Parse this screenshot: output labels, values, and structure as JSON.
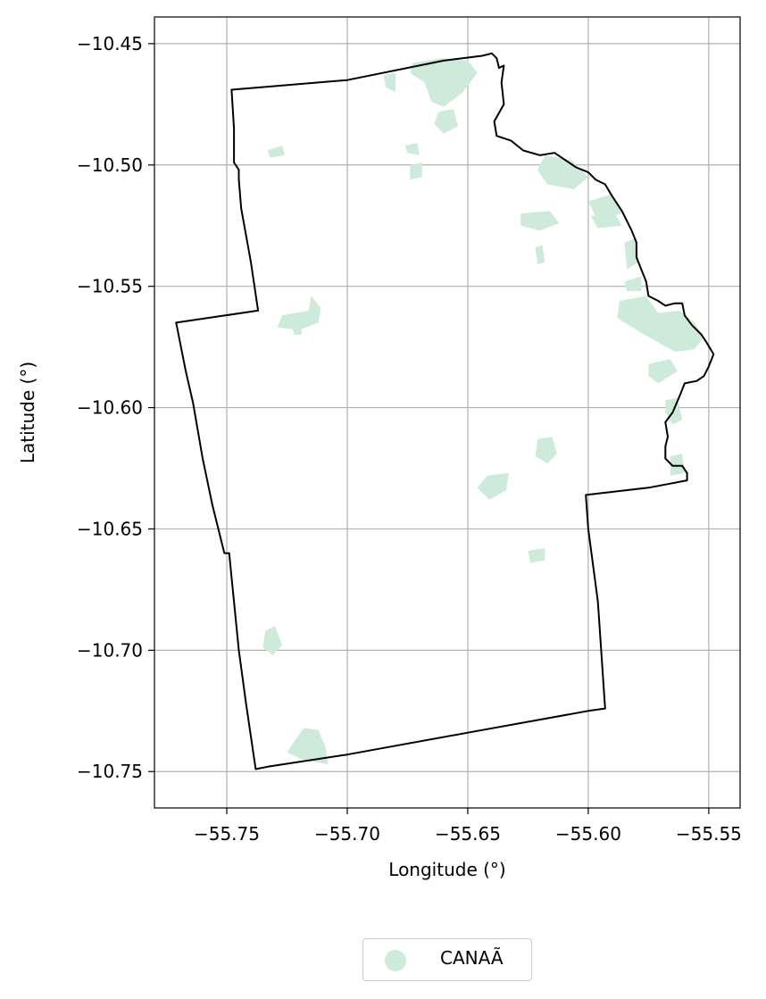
{
  "chart_data": {
    "type": "map",
    "xlabel": "Longitude (°)",
    "ylabel": "Latitude (°)",
    "xlim": [
      -55.78,
      -55.537
    ],
    "ylim": [
      -10.765,
      -10.439
    ],
    "xticks": [
      -55.75,
      -55.7,
      -55.65,
      -55.6,
      -55.55
    ],
    "yticks": [
      -10.45,
      -10.5,
      -10.55,
      -10.6,
      -10.65,
      -10.7,
      -10.75
    ],
    "xtick_labels": [
      "−55.75",
      "−55.70",
      "−55.65",
      "−55.60",
      "−55.55"
    ],
    "ytick_labels": [
      "−10.45",
      "−10.50",
      "−10.55",
      "−10.60",
      "−10.65",
      "−10.70",
      "−10.75"
    ],
    "grid": true,
    "fill_color": "#cdeadb",
    "boundary_color": "#000000",
    "legend": {
      "placement": "bottom-center",
      "label": "CANAÃ"
    },
    "boundary": [
      [
        -55.748,
        -10.469
      ],
      [
        -55.7,
        -10.465
      ],
      [
        -55.66,
        -10.457
      ],
      [
        -55.644,
        -10.455
      ],
      [
        -55.64,
        -10.454
      ],
      [
        -55.638,
        -10.456
      ],
      [
        -55.637,
        -10.46
      ],
      [
        -55.635,
        -10.459
      ],
      [
        -55.636,
        -10.466
      ],
      [
        -55.635,
        -10.475
      ],
      [
        -55.639,
        -10.482
      ],
      [
        -55.638,
        -10.488
      ],
      [
        -55.632,
        -10.49
      ],
      [
        -55.627,
        -10.494
      ],
      [
        -55.62,
        -10.496
      ],
      [
        -55.614,
        -10.495
      ],
      [
        -55.608,
        -10.499
      ],
      [
        -55.605,
        -10.501
      ],
      [
        -55.6,
        -10.503
      ],
      [
        -55.597,
        -10.506
      ],
      [
        -55.593,
        -10.508
      ],
      [
        -55.59,
        -10.513
      ],
      [
        -55.586,
        -10.519
      ],
      [
        -55.584,
        -10.523
      ],
      [
        -55.582,
        -10.527
      ],
      [
        -55.58,
        -10.532
      ],
      [
        -55.58,
        -10.538
      ],
      [
        -55.578,
        -10.543
      ],
      [
        -55.576,
        -10.548
      ],
      [
        -55.575,
        -10.554
      ],
      [
        -55.571,
        -10.556
      ],
      [
        -55.568,
        -10.558
      ],
      [
        -55.564,
        -10.557
      ],
      [
        -55.561,
        -10.557
      ],
      [
        -55.56,
        -10.562
      ],
      [
        -55.557,
        -10.566
      ],
      [
        -55.553,
        -10.57
      ],
      [
        -55.551,
        -10.573
      ],
      [
        -55.548,
        -10.578
      ],
      [
        -55.55,
        -10.583
      ],
      [
        -55.552,
        -10.587
      ],
      [
        -55.555,
        -10.589
      ],
      [
        -55.56,
        -10.59
      ],
      [
        -55.562,
        -10.595
      ],
      [
        -55.565,
        -10.602
      ],
      [
        -55.568,
        -10.606
      ],
      [
        -55.567,
        -10.612
      ],
      [
        -55.568,
        -10.616
      ],
      [
        -55.568,
        -10.621
      ],
      [
        -55.565,
        -10.624
      ],
      [
        -55.561,
        -10.624
      ],
      [
        -55.559,
        -10.627
      ],
      [
        -55.559,
        -10.63
      ],
      [
        -55.575,
        -10.633
      ],
      [
        -55.601,
        -10.636
      ],
      [
        -55.6,
        -10.65
      ],
      [
        -55.596,
        -10.68
      ],
      [
        -55.593,
        -10.724
      ],
      [
        -55.6,
        -10.725
      ],
      [
        -55.65,
        -10.734
      ],
      [
        -55.7,
        -10.743
      ],
      [
        -55.733,
        -10.748
      ],
      [
        -55.738,
        -10.749
      ],
      [
        -55.742,
        -10.722
      ],
      [
        -55.745,
        -10.7
      ],
      [
        -55.749,
        -10.66
      ],
      [
        -55.751,
        -10.66
      ],
      [
        -55.756,
        -10.64
      ],
      [
        -55.76,
        -10.621
      ],
      [
        -55.764,
        -10.598
      ],
      [
        -55.767,
        -10.585
      ],
      [
        -55.771,
        -10.565
      ],
      [
        -55.737,
        -10.56
      ],
      [
        -55.74,
        -10.54
      ],
      [
        -55.744,
        -10.518
      ],
      [
        -55.745,
        -10.506
      ],
      [
        -55.745,
        -10.502
      ],
      [
        -55.747,
        -10.499
      ],
      [
        -55.747,
        -10.485
      ],
      [
        -55.748,
        -10.469
      ]
    ],
    "patches": [
      [
        [
          -55.673,
          -10.458
        ],
        [
          -55.661,
          -10.456
        ],
        [
          -55.65,
          -10.457
        ],
        [
          -55.646,
          -10.462
        ],
        [
          -55.652,
          -10.47
        ],
        [
          -55.66,
          -10.476
        ],
        [
          -55.665,
          -10.474
        ],
        [
          -55.668,
          -10.466
        ],
        [
          -55.674,
          -10.462
        ]
      ],
      [
        [
          -55.685,
          -10.463
        ],
        [
          -55.68,
          -10.462
        ],
        [
          -55.68,
          -10.47
        ],
        [
          -55.684,
          -10.468
        ]
      ],
      [
        [
          -55.662,
          -10.478
        ],
        [
          -55.656,
          -10.477
        ],
        [
          -55.654,
          -10.484
        ],
        [
          -55.66,
          -10.487
        ],
        [
          -55.664,
          -10.483
        ]
      ],
      [
        [
          -55.676,
          -10.492
        ],
        [
          -55.671,
          -10.491
        ],
        [
          -55.67,
          -10.496
        ],
        [
          -55.675,
          -10.495
        ]
      ],
      [
        [
          -55.674,
          -10.5
        ],
        [
          -55.669,
          -10.499
        ],
        [
          -55.669,
          -10.505
        ],
        [
          -55.674,
          -10.506
        ]
      ],
      [
        [
          -55.733,
          -10.494
        ],
        [
          -55.727,
          -10.492
        ],
        [
          -55.726,
          -10.496
        ],
        [
          -55.732,
          -10.497
        ]
      ],
      [
        [
          -55.618,
          -10.496
        ],
        [
          -55.607,
          -10.498
        ],
        [
          -55.6,
          -10.505
        ],
        [
          -55.606,
          -10.51
        ],
        [
          -55.617,
          -10.508
        ],
        [
          -55.621,
          -10.502
        ]
      ],
      [
        [
          -55.628,
          -10.52
        ],
        [
          -55.616,
          -10.519
        ],
        [
          -55.612,
          -10.524
        ],
        [
          -55.62,
          -10.527
        ],
        [
          -55.628,
          -10.525
        ]
      ],
      [
        [
          -55.6,
          -10.515
        ],
        [
          -55.59,
          -10.512
        ],
        [
          -55.586,
          -10.52
        ],
        [
          -55.596,
          -10.523
        ]
      ],
      [
        [
          -55.599,
          -10.521
        ],
        [
          -55.589,
          -10.52
        ],
        [
          -55.586,
          -10.525
        ],
        [
          -55.596,
          -10.526
        ]
      ],
      [
        [
          -55.585,
          -10.532
        ],
        [
          -55.58,
          -10.53
        ],
        [
          -55.579,
          -10.54
        ],
        [
          -55.584,
          -10.543
        ]
      ],
      [
        [
          -55.622,
          -10.534
        ],
        [
          -55.619,
          -10.533
        ],
        [
          -55.618,
          -10.54
        ],
        [
          -55.621,
          -10.541
        ]
      ],
      [
        [
          -55.585,
          -10.548
        ],
        [
          -55.578,
          -10.546
        ],
        [
          -55.578,
          -10.552
        ],
        [
          -55.584,
          -10.552
        ]
      ],
      [
        [
          -55.587,
          -10.556
        ],
        [
          -55.576,
          -10.554
        ],
        [
          -55.571,
          -10.561
        ],
        [
          -55.562,
          -10.56
        ],
        [
          -55.556,
          -10.565
        ],
        [
          -55.552,
          -10.571
        ],
        [
          -55.556,
          -10.576
        ],
        [
          -55.564,
          -10.577
        ],
        [
          -55.573,
          -10.572
        ],
        [
          -55.58,
          -10.568
        ],
        [
          -55.588,
          -10.563
        ]
      ],
      [
        [
          -55.575,
          -10.582
        ],
        [
          -55.566,
          -10.58
        ],
        [
          -55.563,
          -10.585
        ],
        [
          -55.571,
          -10.59
        ],
        [
          -55.575,
          -10.587
        ]
      ],
      [
        [
          -55.568,
          -10.597
        ],
        [
          -55.563,
          -10.596
        ],
        [
          -55.561,
          -10.605
        ],
        [
          -55.565,
          -10.607
        ],
        [
          -55.568,
          -10.602
        ]
      ],
      [
        [
          -55.566,
          -10.62
        ],
        [
          -55.561,
          -10.619
        ],
        [
          -55.56,
          -10.627
        ],
        [
          -55.566,
          -10.628
        ]
      ],
      [
        [
          -55.621,
          -10.613
        ],
        [
          -55.615,
          -10.612
        ],
        [
          -55.613,
          -10.619
        ],
        [
          -55.617,
          -10.623
        ],
        [
          -55.622,
          -10.62
        ]
      ],
      [
        [
          -55.642,
          -10.628
        ],
        [
          -55.633,
          -10.627
        ],
        [
          -55.634,
          -10.634
        ],
        [
          -55.641,
          -10.638
        ],
        [
          -55.646,
          -10.633
        ]
      ],
      [
        [
          -55.625,
          -10.659
        ],
        [
          -55.618,
          -10.658
        ],
        [
          -55.618,
          -10.663
        ],
        [
          -55.624,
          -10.664
        ]
      ],
      [
        [
          -55.727,
          -10.562
        ],
        [
          -55.716,
          -10.56
        ],
        [
          -55.715,
          -10.554
        ],
        [
          -55.711,
          -10.559
        ],
        [
          -55.712,
          -10.565
        ],
        [
          -55.72,
          -10.568
        ],
        [
          -55.729,
          -10.567
        ]
      ],
      [
        [
          -55.723,
          -10.566
        ],
        [
          -55.719,
          -10.566
        ],
        [
          -55.719,
          -10.57
        ],
        [
          -55.722,
          -10.57
        ]
      ],
      [
        [
          -55.734,
          -10.692
        ],
        [
          -55.73,
          -10.69
        ],
        [
          -55.727,
          -10.698
        ],
        [
          -55.731,
          -10.702
        ],
        [
          -55.735,
          -10.699
        ]
      ],
      [
        [
          -55.718,
          -10.732
        ],
        [
          -55.712,
          -10.733
        ],
        [
          -55.709,
          -10.74
        ],
        [
          -55.708,
          -10.747
        ],
        [
          -55.719,
          -10.745
        ],
        [
          -55.725,
          -10.742
        ]
      ]
    ]
  }
}
